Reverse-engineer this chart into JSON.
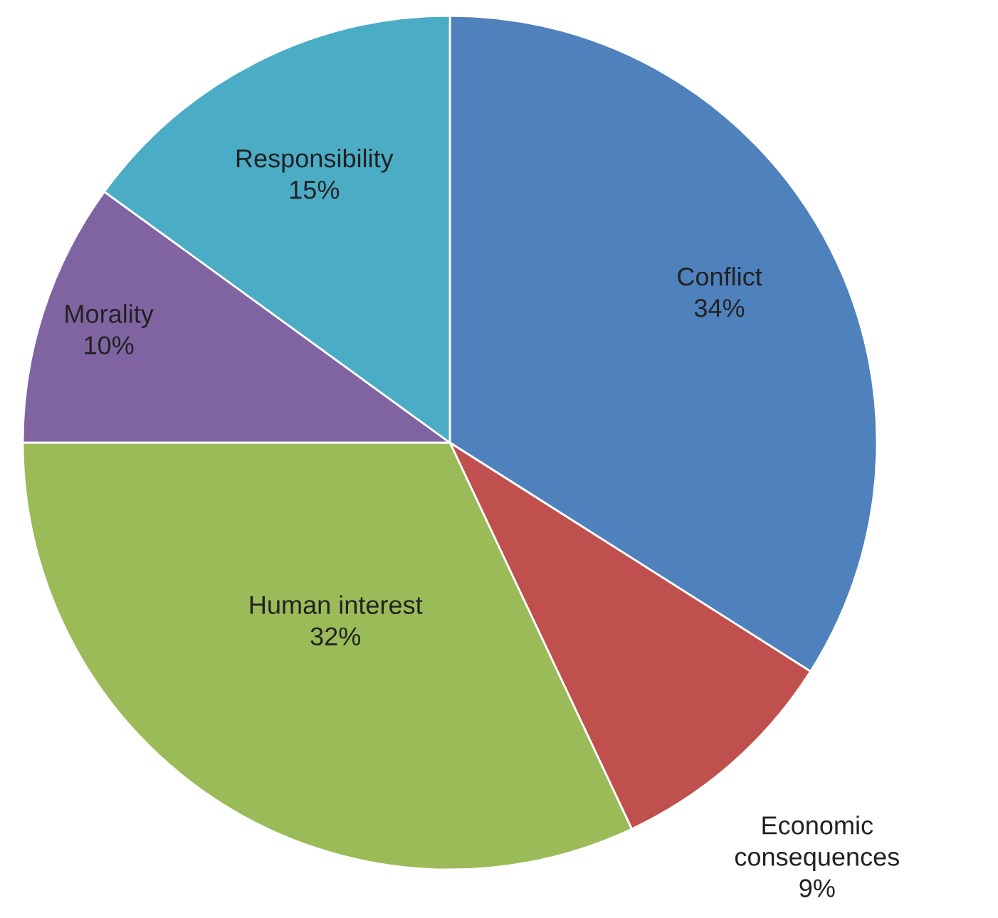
{
  "chart_data": {
    "type": "pie",
    "categories": [
      "Conflict",
      "Economic consequences",
      "Human interest",
      "Morality",
      "Responsibility"
    ],
    "values": [
      34,
      9,
      32,
      10,
      15
    ],
    "value_labels": [
      "34%",
      "9%",
      "32%",
      "10%",
      "15%"
    ],
    "colors": [
      "#4f81bd",
      "#c0504d",
      "#9bbb59",
      "#8064a2",
      "#4bacc6"
    ]
  }
}
